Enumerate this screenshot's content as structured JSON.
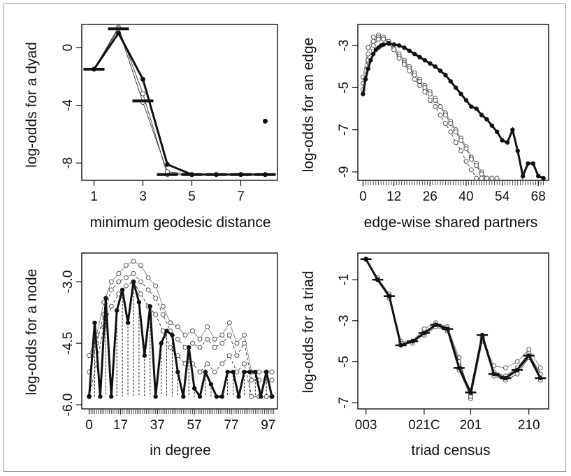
{
  "chart_data": [
    {
      "id": "geodesic",
      "type": "line",
      "xlabel": "minimum geodesic distance",
      "ylabel": "log-odds for a dyad",
      "xlim": [
        0.5,
        8.5
      ],
      "ylim": [
        -9.2,
        1.6
      ],
      "xticks": [
        1,
        3,
        5,
        7
      ],
      "yticks": [
        0,
        -4,
        -8
      ],
      "obs": {
        "x": [
          1,
          2,
          3,
          4,
          5,
          6,
          7,
          8
        ],
        "y": [
          -1.5,
          1.3,
          -3.7,
          -8.8,
          -8.8,
          -8.8,
          -8.8,
          -8.8
        ]
      },
      "sim": [
        {
          "x": [
            1,
            2,
            3,
            4,
            5,
            6,
            7,
            8
          ],
          "y": [
            -1.5,
            1.0,
            -2.2,
            -8.1,
            -8.8,
            -8.8,
            -8.8,
            -8.8
          ]
        },
        {
          "x": [
            1,
            2,
            3,
            4,
            5,
            6,
            7,
            8
          ],
          "y": [
            -1.5,
            1.4,
            -3.2,
            -8.8,
            -8.8,
            -8.8,
            -8.8,
            -8.8
          ]
        },
        {
          "x": [
            1,
            2,
            3,
            4,
            5,
            6,
            7,
            8
          ],
          "y": [
            -1.5,
            1.3,
            -3.8,
            -8.6,
            -8.8,
            -8.8,
            -8.8,
            -8.8
          ]
        }
      ],
      "extra_point": {
        "x": 8,
        "y": -5.1
      }
    },
    {
      "id": "esp",
      "type": "line",
      "xlabel": "edge-wise shared partners",
      "ylabel": "log-odds for an edge",
      "xlim": [
        -2,
        72
      ],
      "ylim": [
        -9.4,
        -2.0
      ],
      "xticks": [
        0,
        12,
        26,
        40,
        54,
        68
      ],
      "yticks": [
        -3,
        -5,
        -7,
        -9
      ],
      "obs": {
        "x": [
          0,
          1,
          2,
          3,
          4,
          5,
          6,
          7,
          8,
          10,
          12,
          14,
          16,
          18,
          20,
          22,
          24,
          26,
          28,
          30,
          32,
          34,
          36,
          38,
          40,
          42,
          44,
          46,
          48,
          50,
          52,
          54,
          56,
          58,
          60,
          62,
          64,
          66,
          68,
          70
        ],
        "y": [
          -5.3,
          -4.6,
          -4.1,
          -3.7,
          -3.4,
          -3.2,
          -3.1,
          -3.0,
          -2.95,
          -2.9,
          -2.95,
          -3.0,
          -3.1,
          -3.25,
          -3.4,
          -3.55,
          -3.7,
          -3.85,
          -4.0,
          -4.2,
          -4.4,
          -4.7,
          -5.0,
          -5.3,
          -5.6,
          -5.9,
          -6.0,
          -6.3,
          -6.5,
          -6.8,
          -7.1,
          -7.5,
          -7.6,
          -7.0,
          -8.0,
          -9.2,
          -8.6,
          -8.6,
          -9.2,
          -9.3
        ]
      },
      "sim": [
        {
          "x": [
            0,
            2,
            4,
            6,
            8,
            10,
            12,
            14,
            16,
            18,
            20,
            22,
            24,
            26,
            28,
            30,
            32,
            34,
            36,
            38,
            40,
            42,
            44,
            46,
            48,
            50
          ],
          "y": [
            -4.5,
            -3.1,
            -2.6,
            -2.5,
            -2.6,
            -2.8,
            -3.1,
            -3.4,
            -3.7,
            -4.0,
            -4.3,
            -4.6,
            -4.9,
            -5.2,
            -5.5,
            -5.9,
            -6.2,
            -6.6,
            -7.0,
            -7.4,
            -7.8,
            -8.3,
            -8.6,
            -9.0,
            -9.3,
            -9.3
          ]
        },
        {
          "x": [
            0,
            2,
            4,
            6,
            8,
            10,
            12,
            14,
            16,
            18,
            20,
            22,
            24,
            26,
            28,
            30,
            32,
            34,
            36,
            38,
            40,
            42,
            44,
            46,
            48,
            50,
            52
          ],
          "y": [
            -4.8,
            -3.4,
            -2.8,
            -2.6,
            -2.7,
            -2.9,
            -3.2,
            -3.5,
            -3.8,
            -4.1,
            -4.4,
            -4.7,
            -5.0,
            -5.3,
            -5.6,
            -5.9,
            -6.3,
            -6.7,
            -7.1,
            -7.5,
            -7.9,
            -8.4,
            -8.7,
            -9.1,
            -9.3,
            -9.3,
            -9.3
          ]
        },
        {
          "x": [
            0,
            2,
            4,
            6,
            8,
            10,
            12,
            14,
            16,
            18,
            20,
            22,
            24,
            26,
            28,
            30,
            32,
            34,
            36,
            38,
            40,
            42,
            44,
            46,
            48
          ],
          "y": [
            -5.1,
            -3.7,
            -3.0,
            -2.7,
            -2.7,
            -2.9,
            -3.2,
            -3.6,
            -3.9,
            -4.2,
            -4.6,
            -4.9,
            -5.2,
            -5.6,
            -5.9,
            -6.3,
            -6.7,
            -7.1,
            -7.6,
            -8.0,
            -8.5,
            -8.9,
            -9.3,
            -9.3,
            -9.3
          ]
        }
      ]
    },
    {
      "id": "indegree",
      "type": "line",
      "xlabel": "in degree",
      "ylabel": "log-odds for a node",
      "xlim": [
        -4,
        102
      ],
      "ylim": [
        -6.1,
        -2.3
      ],
      "xticks": [
        0,
        17,
        37,
        57,
        77,
        97
      ],
      "yticks": [
        -3.0,
        -4.5,
        -6.0
      ],
      "obs": {
        "x": [
          0,
          3,
          6,
          9,
          12,
          15,
          18,
          21,
          24,
          27,
          30,
          33,
          36,
          39,
          42,
          45,
          48,
          51,
          54,
          57,
          60,
          63,
          66,
          69,
          72,
          75,
          78,
          81,
          84,
          87,
          90,
          93,
          96,
          99
        ],
        "y": [
          -5.8,
          -4.0,
          -5.8,
          -3.4,
          -5.8,
          -3.7,
          -3.2,
          -4.0,
          -3.0,
          -3.5,
          -4.8,
          -3.6,
          -5.8,
          -4.5,
          -4.2,
          -4.3,
          -5.2,
          -5.8,
          -4.6,
          -5.6,
          -5.8,
          -5.2,
          -5.5,
          -5.8,
          -5.8,
          -5.2,
          -5.2,
          -5.8,
          -5.2,
          -5.2,
          -5.2,
          -5.8,
          -5.2,
          -5.8
        ]
      },
      "sim": [
        {
          "x": [
            0,
            4,
            8,
            12,
            16,
            20,
            24,
            28,
            32,
            36,
            40,
            44,
            48,
            52,
            56,
            60,
            64,
            68,
            72,
            76,
            80,
            84,
            88,
            92,
            96,
            99
          ],
          "y": [
            -4.8,
            -4.3,
            -3.5,
            -3.0,
            -2.8,
            -2.6,
            -2.5,
            -2.6,
            -2.9,
            -3.1,
            -3.6,
            -4.0,
            -4.1,
            -4.3,
            -4.2,
            -4.4,
            -4.1,
            -4.4,
            -4.3,
            -4.0,
            -4.5,
            -4.3,
            -5.2,
            -5.2,
            -5.2,
            -5.2
          ]
        },
        {
          "x": [
            0,
            4,
            8,
            12,
            16,
            20,
            24,
            28,
            32,
            36,
            40,
            44,
            48,
            52,
            56,
            60,
            64,
            68,
            72,
            76,
            80,
            84,
            88,
            92,
            96,
            99
          ],
          "y": [
            -5.2,
            -4.5,
            -3.8,
            -3.2,
            -3.0,
            -2.9,
            -2.8,
            -3.0,
            -3.2,
            -3.4,
            -3.8,
            -4.2,
            -4.4,
            -4.6,
            -4.5,
            -4.6,
            -4.4,
            -4.6,
            -4.5,
            -4.3,
            -4.8,
            -4.5,
            -5.4,
            -5.4,
            -5.4,
            -5.4
          ]
        },
        {
          "x": [
            0,
            4,
            8,
            12,
            16,
            20,
            24,
            28,
            32,
            36,
            40,
            44,
            48,
            52,
            56,
            60,
            64,
            68,
            72,
            76,
            80,
            84,
            88,
            92,
            96,
            99
          ],
          "y": [
            -5.8,
            -5.0,
            -4.1,
            -3.6,
            -3.3,
            -3.1,
            -3.0,
            -3.3,
            -3.6,
            -3.8,
            -4.2,
            -4.6,
            -4.8,
            -5.0,
            -5.0,
            -5.2,
            -5.0,
            -5.2,
            -5.0,
            -4.8,
            -5.2,
            -5.0,
            -5.8,
            -5.8,
            -5.8,
            -5.8
          ]
        }
      ]
    },
    {
      "id": "triad",
      "type": "line",
      "xlabel": "triad census",
      "ylabel": "log-odds for a triad",
      "xlim": [
        0.3,
        16.7
      ],
      "ylim": [
        -7.3,
        0.3
      ],
      "xticks": [
        {
          "pos": 1,
          "label": "003"
        },
        {
          "pos": 6,
          "label": "021C"
        },
        {
          "pos": 10,
          "label": "201"
        },
        {
          "pos": 15,
          "label": "210"
        }
      ],
      "yticks": [
        -1,
        -3,
        -5,
        -7
      ],
      "obs": {
        "x": [
          1,
          2,
          3,
          4,
          5,
          6,
          7,
          8,
          9,
          10,
          11,
          12,
          13,
          14,
          15,
          16
        ],
        "y": [
          0.0,
          -1.0,
          -1.8,
          -4.2,
          -4.0,
          -3.6,
          -3.2,
          -3.4,
          -5.3,
          -6.5,
          -3.7,
          -5.6,
          -5.8,
          -5.4,
          -4.7,
          -5.8
        ]
      },
      "sim": [
        {
          "x": [
            1,
            2,
            3,
            4,
            5,
            6,
            7,
            8,
            9,
            10,
            11,
            12,
            13,
            14,
            15,
            16
          ],
          "y": [
            0.0,
            -0.9,
            -1.7,
            -4.0,
            -4.0,
            -3.4,
            -3.1,
            -3.3,
            -4.8,
            -6.8,
            -4.0,
            -5.2,
            -5.3,
            -5.0,
            -4.4,
            -5.3
          ]
        },
        {
          "x": [
            1,
            2,
            3,
            4,
            5,
            6,
            7,
            8,
            9,
            10,
            11,
            12,
            13,
            14,
            15,
            16
          ],
          "y": [
            0.0,
            -1.0,
            -1.8,
            -4.1,
            -4.1,
            -3.6,
            -3.2,
            -3.3,
            -5.0,
            -6.6,
            -3.8,
            -5.5,
            -5.7,
            -5.3,
            -4.6,
            -5.6
          ]
        },
        {
          "x": [
            1,
            2,
            3,
            4,
            5,
            6,
            7,
            8,
            9,
            10,
            11,
            12,
            13,
            14,
            15,
            16
          ],
          "y": [
            0.0,
            -1.0,
            -1.9,
            -4.1,
            -4.0,
            -3.7,
            -3.3,
            -3.5,
            -5.4,
            -6.7,
            -3.9,
            -5.7,
            -5.9,
            -5.6,
            -4.8,
            -5.9
          ]
        }
      ]
    }
  ]
}
